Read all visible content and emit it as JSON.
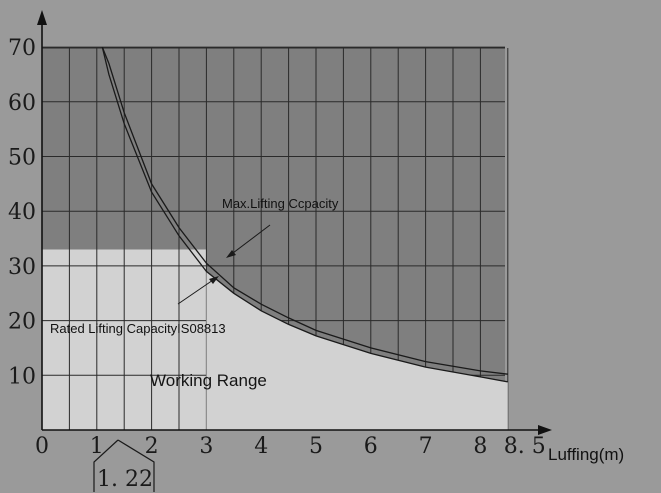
{
  "chart_data": {
    "type": "line",
    "x": [
      1.1,
      1.22,
      1.5,
      2,
      2.5,
      3,
      3.5,
      4,
      4.5,
      5,
      6,
      7,
      8,
      8.5
    ],
    "series": [
      {
        "name": "Max.Lifting Ccpacity",
        "values": [
          70,
          67,
          58,
          45,
          37,
          30.5,
          26,
          23,
          20.5,
          18.2,
          15,
          12.5,
          10.8,
          10.2
        ]
      },
      {
        "name": "Rated Lifting CapacityIS08813",
        "values": [
          70,
          65,
          56,
          43.5,
          35.5,
          29,
          25,
          21.8,
          19.3,
          17.2,
          14,
          11.5,
          9.7,
          8.8
        ]
      }
    ],
    "working_range": {
      "label": "Working Range",
      "max_y": 33
    },
    "xlim": [
      0,
      8.5
    ],
    "ylim": [
      0,
      75
    ],
    "x_ticks": [
      "0",
      "1",
      "2",
      "3",
      "4",
      "5",
      "6",
      "7",
      "8",
      "8. 5"
    ],
    "y_ticks": [
      "10",
      "20",
      "30",
      "40",
      "50",
      "60",
      "70"
    ],
    "xlabel": "Luffing(m)",
    "ylabel": "",
    "callout": "1. 22",
    "grid": true,
    "colors": {
      "background": "#9a9a9a",
      "chart_area": "#7f7f7f",
      "working_range": "#d2d2d2",
      "lines": "#1a1a1a"
    }
  }
}
